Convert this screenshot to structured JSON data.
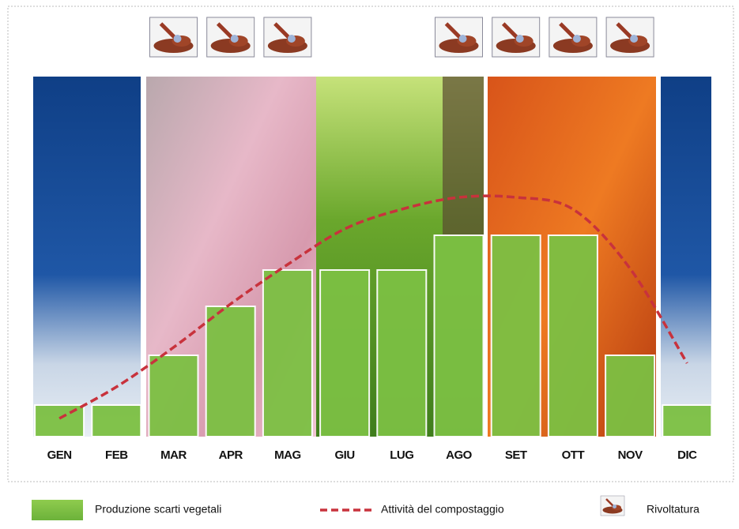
{
  "chart_data": {
    "type": "bar-line",
    "categories": [
      "GEN",
      "FEB",
      "MAR",
      "APR",
      "MAG",
      "GIU",
      "LUG",
      "AGO",
      "SET",
      "OTT",
      "NOV",
      "DIC"
    ],
    "series": [
      {
        "name": "Produzione scarti vegetali",
        "color": "#7cc043",
        "values": [
          40,
          40,
          103,
          165,
          211,
          211,
          211,
          255,
          255,
          255,
          103,
          40
        ]
      },
      {
        "name": "Attività del compostaggio",
        "color": "#c8323c",
        "values": [
          23,
          63,
          113,
          168,
          218,
          263,
          288,
          303,
          303,
          288,
          213,
          93
        ]
      }
    ],
    "turning": {
      "label": "Rivoltatura",
      "months": [
        false,
        false,
        true,
        true,
        true,
        false,
        false,
        true,
        true,
        true,
        true,
        false
      ]
    },
    "ylim": [
      0,
      310
    ]
  }
}
